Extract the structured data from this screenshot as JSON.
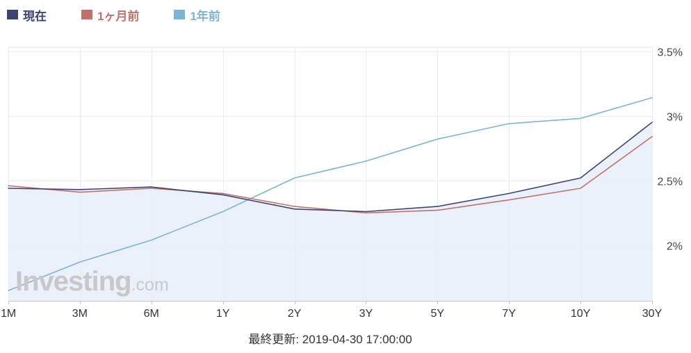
{
  "legend": [
    {
      "label": "現在",
      "color": "#3d4470"
    },
    {
      "label": "1ヶ月前",
      "color": "#c0726a"
    },
    {
      "label": "1年前",
      "color": "#7cb5d2"
    }
  ],
  "footer": {
    "prefix": "最終更新:",
    "timestamp": "2019-04-30 17:00:00"
  },
  "watermark": {
    "brand": "Investing",
    "tld": ".com"
  },
  "chart_data": {
    "type": "line",
    "categories": [
      "1M",
      "3M",
      "6M",
      "1Y",
      "2Y",
      "3Y",
      "5Y",
      "7Y",
      "10Y",
      "30Y"
    ],
    "y_ticks": [
      {
        "value": 3.5,
        "label": "3.5%"
      },
      {
        "value": 3.0,
        "label": "3%"
      },
      {
        "value": 2.5,
        "label": "2.5%"
      },
      {
        "value": 2.0,
        "label": "2%"
      }
    ],
    "ylim": [
      1.57,
      3.53
    ],
    "y_axis_position": "right",
    "grid": true,
    "legend_position": "top-left",
    "series": [
      {
        "name": "現在",
        "color": "#3d4470",
        "filled": true,
        "fill_color": "#e7eef9",
        "values": [
          2.44,
          2.43,
          2.45,
          2.39,
          2.28,
          2.26,
          2.3,
          2.4,
          2.52,
          2.95
        ]
      },
      {
        "name": "1ヶ月前",
        "color": "#c0726a",
        "filled": false,
        "values": [
          2.46,
          2.41,
          2.44,
          2.4,
          2.3,
          2.25,
          2.27,
          2.35,
          2.44,
          2.84
        ]
      },
      {
        "name": "1年前",
        "color": "#7cb5d2",
        "filled": false,
        "values": [
          1.65,
          1.87,
          2.04,
          2.26,
          2.52,
          2.65,
          2.82,
          2.94,
          2.98,
          3.14
        ]
      }
    ]
  }
}
